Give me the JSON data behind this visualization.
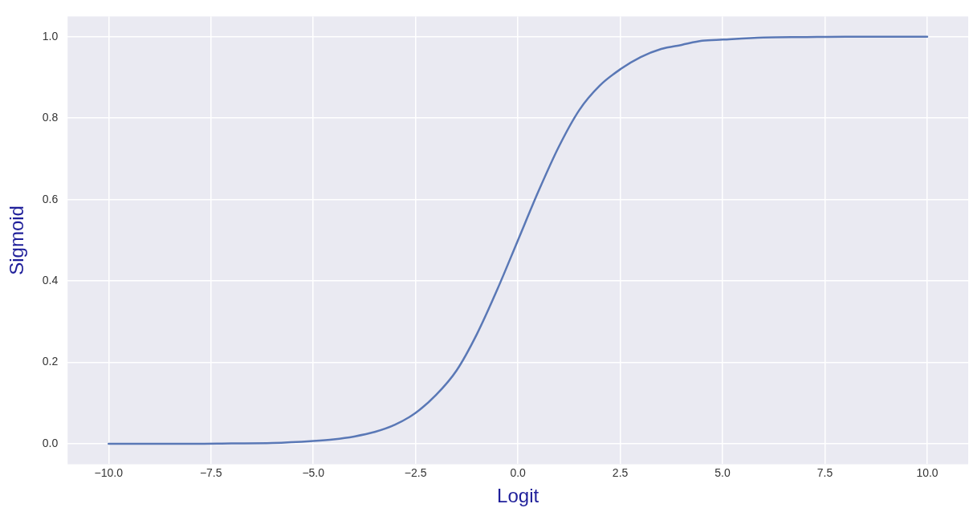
{
  "chart_data": {
    "type": "line",
    "xlabel": "Logit",
    "ylabel": "Sigmoid",
    "x": [
      -10,
      -9,
      -8,
      -7,
      -6,
      -5,
      -4.5,
      -4,
      -3.5,
      -3,
      -2.5,
      -2,
      -1.5,
      -1,
      -0.5,
      0,
      0.5,
      1,
      1.5,
      2,
      2.5,
      3,
      3.5,
      4,
      4.5,
      5,
      6,
      7,
      8,
      9,
      10
    ],
    "series": [
      {
        "color": "#5a78b6",
        "values": [
          0,
          0,
          0,
          0.001,
          0.002,
          0.007,
          0.011,
          0.018,
          0.029,
          0.047,
          0.076,
          0.12,
          0.18,
          0.27,
          0.38,
          0.5,
          0.62,
          0.73,
          0.82,
          0.88,
          0.92,
          0.95,
          0.97,
          0.98,
          0.99,
          0.993,
          0.998,
          0.999,
          1,
          1,
          1
        ]
      }
    ],
    "xlim": [
      -11,
      11
    ],
    "xticks": [
      {
        "value": -10,
        "label": "−10.0"
      },
      {
        "value": -7.5,
        "label": "−7.5"
      },
      {
        "value": -5,
        "label": "−5.0"
      },
      {
        "value": -2.5,
        "label": "−2.5"
      },
      {
        "value": 0,
        "label": "0.0"
      },
      {
        "value": 2.5,
        "label": "2.5"
      },
      {
        "value": 5,
        "label": "5.0"
      },
      {
        "value": 7.5,
        "label": "7.5"
      },
      {
        "value": 10,
        "label": "10.0"
      }
    ],
    "ylim": [
      -0.05,
      1.05
    ],
    "yticks": [
      {
        "value": 0,
        "label": "0.0"
      },
      {
        "value": 0.2,
        "label": "0.2"
      },
      {
        "value": 0.4,
        "label": "0.4"
      },
      {
        "value": 0.6,
        "label": "0.6"
      },
      {
        "value": 0.8,
        "label": "0.8"
      },
      {
        "value": 1,
        "label": "1.0"
      }
    ],
    "grid": true,
    "legend": false,
    "marker": "none",
    "line_style": "solid"
  }
}
